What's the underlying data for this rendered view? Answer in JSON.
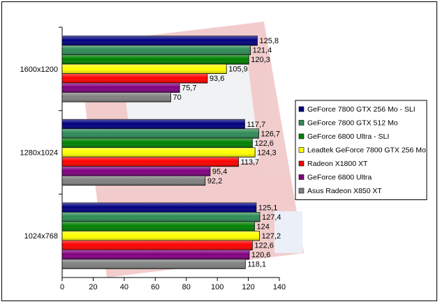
{
  "chart_data": {
    "type": "bar",
    "orientation": "horizontal",
    "title": "",
    "xlabel": "",
    "ylabel": "",
    "xlim": [
      0,
      140
    ],
    "x_ticks": [
      0,
      20,
      40,
      60,
      80,
      100,
      120,
      140
    ],
    "grid": false,
    "legend_position": "right",
    "categories": [
      "1600x1200",
      "1280x1024",
      "1024x768"
    ],
    "series": [
      {
        "name": "GeForce 7800 GTX 256 Mo - SLI",
        "color": "#000080",
        "values": [
          125.8,
          117.7,
          125.1
        ],
        "labels": [
          "125,8",
          "117,7",
          "125,1"
        ]
      },
      {
        "name": "GeForce 7800 GTX 512 Mo",
        "color": "#2E8B57",
        "values": [
          121.4,
          126.7,
          127.4
        ],
        "labels": [
          "121,4",
          "126,7",
          "127,4"
        ]
      },
      {
        "name": "GeForce 6800 Ultra - SLI",
        "color": "#008000",
        "values": [
          120.3,
          122.6,
          124
        ],
        "labels": [
          "120,3",
          "122,6",
          "124"
        ]
      },
      {
        "name": "Leadtek GeForce 7800 GTX 256 Mo",
        "color": "#FFFF00",
        "values": [
          105.9,
          124.3,
          127.2
        ],
        "labels": [
          "105,9",
          "124,3",
          "127,2"
        ]
      },
      {
        "name": "Radeon X1800 XT",
        "color": "#FF0000",
        "values": [
          93.6,
          113.7,
          122.6
        ],
        "labels": [
          "93,6",
          "113,7",
          "122,6"
        ]
      },
      {
        "name": "GeForce 6800 Ultra",
        "color": "#800080",
        "values": [
          75.7,
          95.4,
          120.6
        ],
        "labels": [
          "75,7",
          "95,4",
          "120,6"
        ]
      },
      {
        "name": "Asus Radeon X850 XT",
        "color": "#808080",
        "values": [
          70,
          92.2,
          118.1
        ],
        "labels": [
          "70",
          "92,2",
          "118,1"
        ]
      }
    ]
  }
}
